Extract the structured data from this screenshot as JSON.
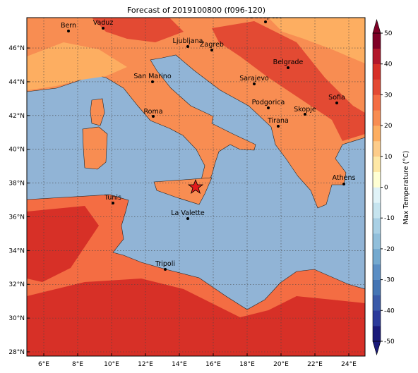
{
  "title": "Forecast of 2019100800 (f096-120)",
  "map": {
    "lon_ticks": [
      "6°E",
      "8°E",
      "10°E",
      "12°E",
      "14°E",
      "16°E",
      "18°E",
      "20°E",
      "22°E",
      "24°E"
    ],
    "lat_ticks": [
      "28°N",
      "30°N",
      "32°N",
      "34°N",
      "36°N",
      "38°N",
      "40°N",
      "42°N",
      "44°N",
      "46°N"
    ],
    "cities": [
      "Bern",
      "Vaduz",
      "Budapest",
      "Ljubljana",
      "Zagreb",
      "Belgrade",
      "San Marino",
      "Sarajevo",
      "Sofia",
      "Roma",
      "Podgorica",
      "Skopje",
      "Tirana",
      "Athens",
      "Tunis",
      "La Valette",
      "Tripoli"
    ]
  },
  "colorbar": {
    "label": "Max Temperature (°C)",
    "ticks": [
      -50,
      -40,
      -30,
      -20,
      -10,
      0,
      10,
      20,
      30,
      40,
      50
    ],
    "colors": [
      "#1a1a7a",
      "#2b3a9a",
      "#3a5aa8",
      "#4575b4",
      "#5b8ec4",
      "#74a9cf",
      "#91bfdb",
      "#a9d0e5",
      "#c6e4ef",
      "#e0f3f8",
      "#ffffd4",
      "#fee8a6",
      "#fdcc8a",
      "#fdae61",
      "#f88d52",
      "#f46d43",
      "#e34a33",
      "#d73027",
      "#b2182b",
      "#800026"
    ]
  }
}
